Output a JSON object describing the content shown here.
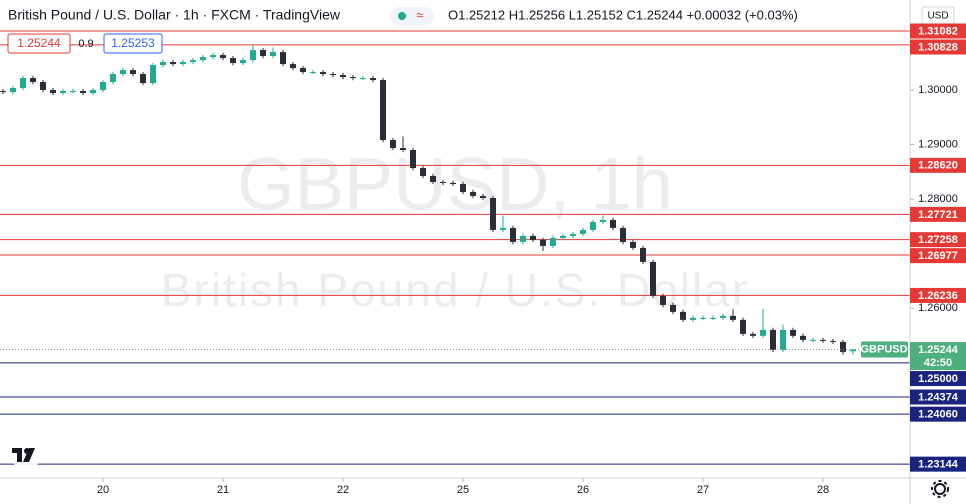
{
  "ui": {
    "title": "British Pound / U.S. Dollar · 1h · FXCM · TradingView",
    "ohlc": "O1.25212 H1.25256 L1.25152 C1.25244 +0.00032 (+0.03%)",
    "sell_price": "1.25244",
    "spread": "0.9",
    "buy_price": "1.25253",
    "currency": "USD",
    "watermark_symbol": "GBPUSD, 1h",
    "watermark_description": "British Pound / U.S. Dollar"
  },
  "chart_data": {
    "type": "candlestick",
    "up_color": "#22ab94",
    "down_color": "#2a2e39",
    "open": [
      1.2998,
      1.29963,
      1.30037,
      1.3022,
      1.30147,
      1.3,
      1.29945,
      1.29982,
      1.29982,
      1.29945,
      1.3,
      1.30147,
      1.30293,
      1.30366,
      1.30293,
      1.30128,
      1.30458,
      1.30513,
      1.30476,
      1.30513,
      1.30549,
      1.30604,
      1.30641,
      1.30586,
      1.30495,
      1.30549,
      1.30733,
      1.30623,
      1.30696,
      1.30476,
      1.30403,
      1.3033,
      1.3033,
      1.30293,
      1.30275,
      1.30238,
      1.3022,
      1.3022,
      1.30183,
      1.29084,
      1.28938,
      1.28901,
      1.28571,
      1.28425,
      1.28315,
      1.28297,
      1.28278,
      1.28132,
      1.28059,
      1.28022,
      1.27436,
      1.27473,
      1.27216,
      1.27326,
      1.27253,
      1.27143,
      1.27289,
      1.27326,
      1.27363,
      1.27436,
      1.27582,
      1.27619,
      1.27473,
      1.27216,
      1.27106,
      1.2685,
      1.26227,
      1.26062,
      1.25934,
      1.25788,
      1.25824,
      1.25824,
      1.25824,
      1.25861,
      1.25788,
      1.25531,
      1.25495,
      1.25604,
      1.25238,
      1.25604,
      1.25495,
      1.25421,
      1.25421,
      1.25403,
      1.25385,
      1.25212
    ],
    "high": [
      1.3002,
      1.30077,
      1.3026,
      1.3026,
      1.30187,
      1.3004,
      1.30022,
      1.30022,
      1.30022,
      1.3004,
      1.30187,
      1.30333,
      1.30406,
      1.30406,
      1.30333,
      1.30498,
      1.30553,
      1.30553,
      1.30553,
      1.30589,
      1.30644,
      1.30681,
      1.30681,
      1.30626,
      1.30589,
      1.3083,
      1.30773,
      1.3078,
      1.30736,
      1.30516,
      1.30443,
      1.3037,
      1.3037,
      1.30333,
      1.30315,
      1.30278,
      1.3026,
      1.3026,
      1.30223,
      1.29124,
      1.2915,
      1.28941,
      1.28611,
      1.28465,
      1.28355,
      1.28337,
      1.28318,
      1.28172,
      1.28099,
      1.28062,
      1.277,
      1.27513,
      1.27366,
      1.27366,
      1.27293,
      1.27329,
      1.27366,
      1.27403,
      1.27476,
      1.27622,
      1.277,
      1.27659,
      1.27513,
      1.27256,
      1.27146,
      1.2689,
      1.26267,
      1.26102,
      1.25974,
      1.25864,
      1.25864,
      1.25864,
      1.25901,
      1.2599,
      1.25828,
      1.25571,
      1.2599,
      1.25644,
      1.257,
      1.25644,
      1.25535,
      1.25461,
      1.25461,
      1.25443,
      1.25425,
      1.25256
    ],
    "low": [
      1.29923,
      1.29923,
      1.29997,
      1.30107,
      1.2996,
      1.29905,
      1.29905,
      1.29942,
      1.29905,
      1.29905,
      1.2996,
      1.30107,
      1.30253,
      1.30253,
      1.30088,
      1.30088,
      1.30418,
      1.30436,
      1.30436,
      1.30473,
      1.30509,
      1.30564,
      1.30546,
      1.30455,
      1.30455,
      1.30509,
      1.30583,
      1.30583,
      1.30436,
      1.30363,
      1.3029,
      1.3029,
      1.30253,
      1.30235,
      1.30198,
      1.3018,
      1.3018,
      1.30143,
      1.29044,
      1.28898,
      1.28861,
      1.28531,
      1.28385,
      1.28275,
      1.28257,
      1.28238,
      1.28092,
      1.28019,
      1.27982,
      1.27396,
      1.27396,
      1.27176,
      1.27176,
      1.27213,
      1.2705,
      1.27103,
      1.27249,
      1.27286,
      1.27323,
      1.27396,
      1.27542,
      1.27433,
      1.27176,
      1.27066,
      1.2681,
      1.26187,
      1.26022,
      1.25894,
      1.25748,
      1.25748,
      1.25784,
      1.25784,
      1.25784,
      1.25748,
      1.25491,
      1.25455,
      1.25455,
      1.25198,
      1.25198,
      1.25455,
      1.25381,
      1.25381,
      1.25363,
      1.25345,
      1.25152,
      1.25152
    ],
    "close": [
      1.29963,
      1.30037,
      1.3022,
      1.30147,
      1.3,
      1.29945,
      1.29982,
      1.29982,
      1.29945,
      1.3,
      1.30147,
      1.30293,
      1.30366,
      1.30293,
      1.30128,
      1.30458,
      1.30513,
      1.30476,
      1.30513,
      1.30549,
      1.30604,
      1.30641,
      1.30586,
      1.30495,
      1.30549,
      1.30733,
      1.30623,
      1.30696,
      1.30476,
      1.30403,
      1.3033,
      1.3033,
      1.30293,
      1.30275,
      1.30238,
      1.3022,
      1.3022,
      1.30183,
      1.29084,
      1.28938,
      1.28901,
      1.28571,
      1.28425,
      1.28315,
      1.28297,
      1.28278,
      1.28132,
      1.28059,
      1.28022,
      1.27436,
      1.27473,
      1.27216,
      1.27326,
      1.27253,
      1.27143,
      1.27289,
      1.27326,
      1.27363,
      1.27436,
      1.27582,
      1.27619,
      1.27473,
      1.27216,
      1.27106,
      1.2685,
      1.26227,
      1.26062,
      1.25934,
      1.25788,
      1.25824,
      1.25824,
      1.25824,
      1.25861,
      1.25788,
      1.25531,
      1.25495,
      1.25604,
      1.25238,
      1.25604,
      1.25495,
      1.25421,
      1.25421,
      1.25403,
      1.25385,
      1.25201,
      1.25244
    ],
    "ylim": [
      1.2289,
      1.3165
    ],
    "yticks": [
      {
        "value": 1.3,
        "label": "1.30000"
      },
      {
        "value": 1.29,
        "label": "1.29000"
      },
      {
        "value": 1.28,
        "label": "1.28000"
      },
      {
        "value": 1.26,
        "label": "1.26000"
      }
    ],
    "xticks": [
      {
        "value": 10,
        "label": "20"
      },
      {
        "value": 22,
        "label": "21"
      },
      {
        "value": 34,
        "label": "22"
      },
      {
        "value": 46,
        "label": "25"
      },
      {
        "value": 58,
        "label": "26"
      },
      {
        "value": 70,
        "label": "27"
      },
      {
        "value": 82,
        "label": "28"
      }
    ],
    "grid": false,
    "levels": [
      {
        "value": 1.31082,
        "label": "1.31082",
        "color": "#e53935"
      },
      {
        "value": 1.30828,
        "label": "1.30828",
        "color": "#e53935"
      },
      {
        "value": 1.2862,
        "label": "1.28620",
        "color": "#e53935"
      },
      {
        "value": 1.27721,
        "label": "1.27721",
        "color": "#e53935"
      },
      {
        "value": 1.27258,
        "label": "1.27258",
        "color": "#e53935"
      },
      {
        "value": 1.26977,
        "label": "1.26977",
        "color": "#e53935"
      },
      {
        "value": 1.26236,
        "label": "1.26236",
        "color": "#e53935"
      },
      {
        "value": 1.25,
        "label": "1.25000",
        "color": "#1a237e"
      },
      {
        "value": 1.24374,
        "label": "1.24374",
        "color": "#1a237e"
      },
      {
        "value": 1.2406,
        "label": "1.24060",
        "color": "#1a237e"
      },
      {
        "value": 1.23144,
        "label": "1.23144",
        "color": "#1a237e"
      }
    ],
    "last": {
      "value": 1.25244,
      "label": "1.25244",
      "name": "GBPUSD",
      "countdown": "42:50",
      "color": "#4caf7d"
    }
  }
}
